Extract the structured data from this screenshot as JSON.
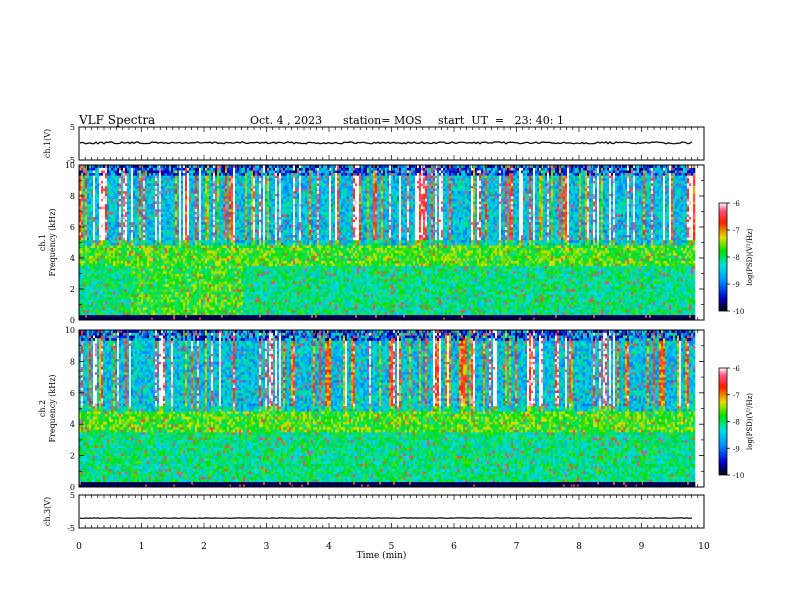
{
  "header": {
    "title": "VLF Spectra",
    "date": "Oct. 4 , 2023",
    "station": "station= MOS",
    "start": "start  UT  =   23: 40: 1"
  },
  "chart_data": [
    {
      "type": "line",
      "panel": "ch1-waveform",
      "ylabel": "ch.1(V)",
      "ylim": [
        -5,
        5
      ],
      "yticks": [
        "5",
        "-5"
      ],
      "xlim": [
        0,
        10
      ],
      "series": [
        {
          "approx_level": 0.2
        }
      ]
    },
    {
      "type": "heatmap",
      "panel": "ch1-spectrogram",
      "ylabel": "ch.1\nFrequency (kHz)",
      "ylim": [
        0,
        10
      ],
      "yticks": [
        "0",
        "2",
        "4",
        "6",
        "8",
        "10"
      ],
      "xlim": [
        0,
        10
      ],
      "data_end_min": 9.85,
      "colorbar": {
        "label": "log(PSD)(V²/Hz)",
        "range": [
          -10,
          -6
        ],
        "ticks": [
          "-6",
          "-7",
          "-8",
          "-9",
          "-10"
        ]
      }
    },
    {
      "type": "heatmap",
      "panel": "ch2-spectrogram",
      "ylabel": "ch.2\nFrequency (kHz)",
      "ylim": [
        0,
        10
      ],
      "yticks": [
        "0",
        "2",
        "4",
        "6",
        "8",
        "10"
      ],
      "xlim": [
        0,
        10
      ],
      "data_end_min": 9.85,
      "colorbar": {
        "label": "log(PSD)(V²/Hz)",
        "range": [
          -10,
          -6
        ],
        "ticks": [
          "-6",
          "-7",
          "-8",
          "-9",
          "-10"
        ]
      }
    },
    {
      "type": "line",
      "panel": "ch3-waveform",
      "ylabel": "ch.3(V)",
      "ylim": [
        -5,
        5
      ],
      "yticks": [
        "5",
        "-5"
      ],
      "xlim": [
        0,
        10
      ],
      "xlabel": "Time (min)",
      "xticks": [
        "0",
        "1",
        "2",
        "3",
        "4",
        "5",
        "6",
        "7",
        "8",
        "9",
        "10"
      ],
      "series": [
        {
          "approx_level": -2.0
        }
      ]
    }
  ],
  "colors": {
    "frame": "#000000",
    "background": "#ffffff"
  }
}
